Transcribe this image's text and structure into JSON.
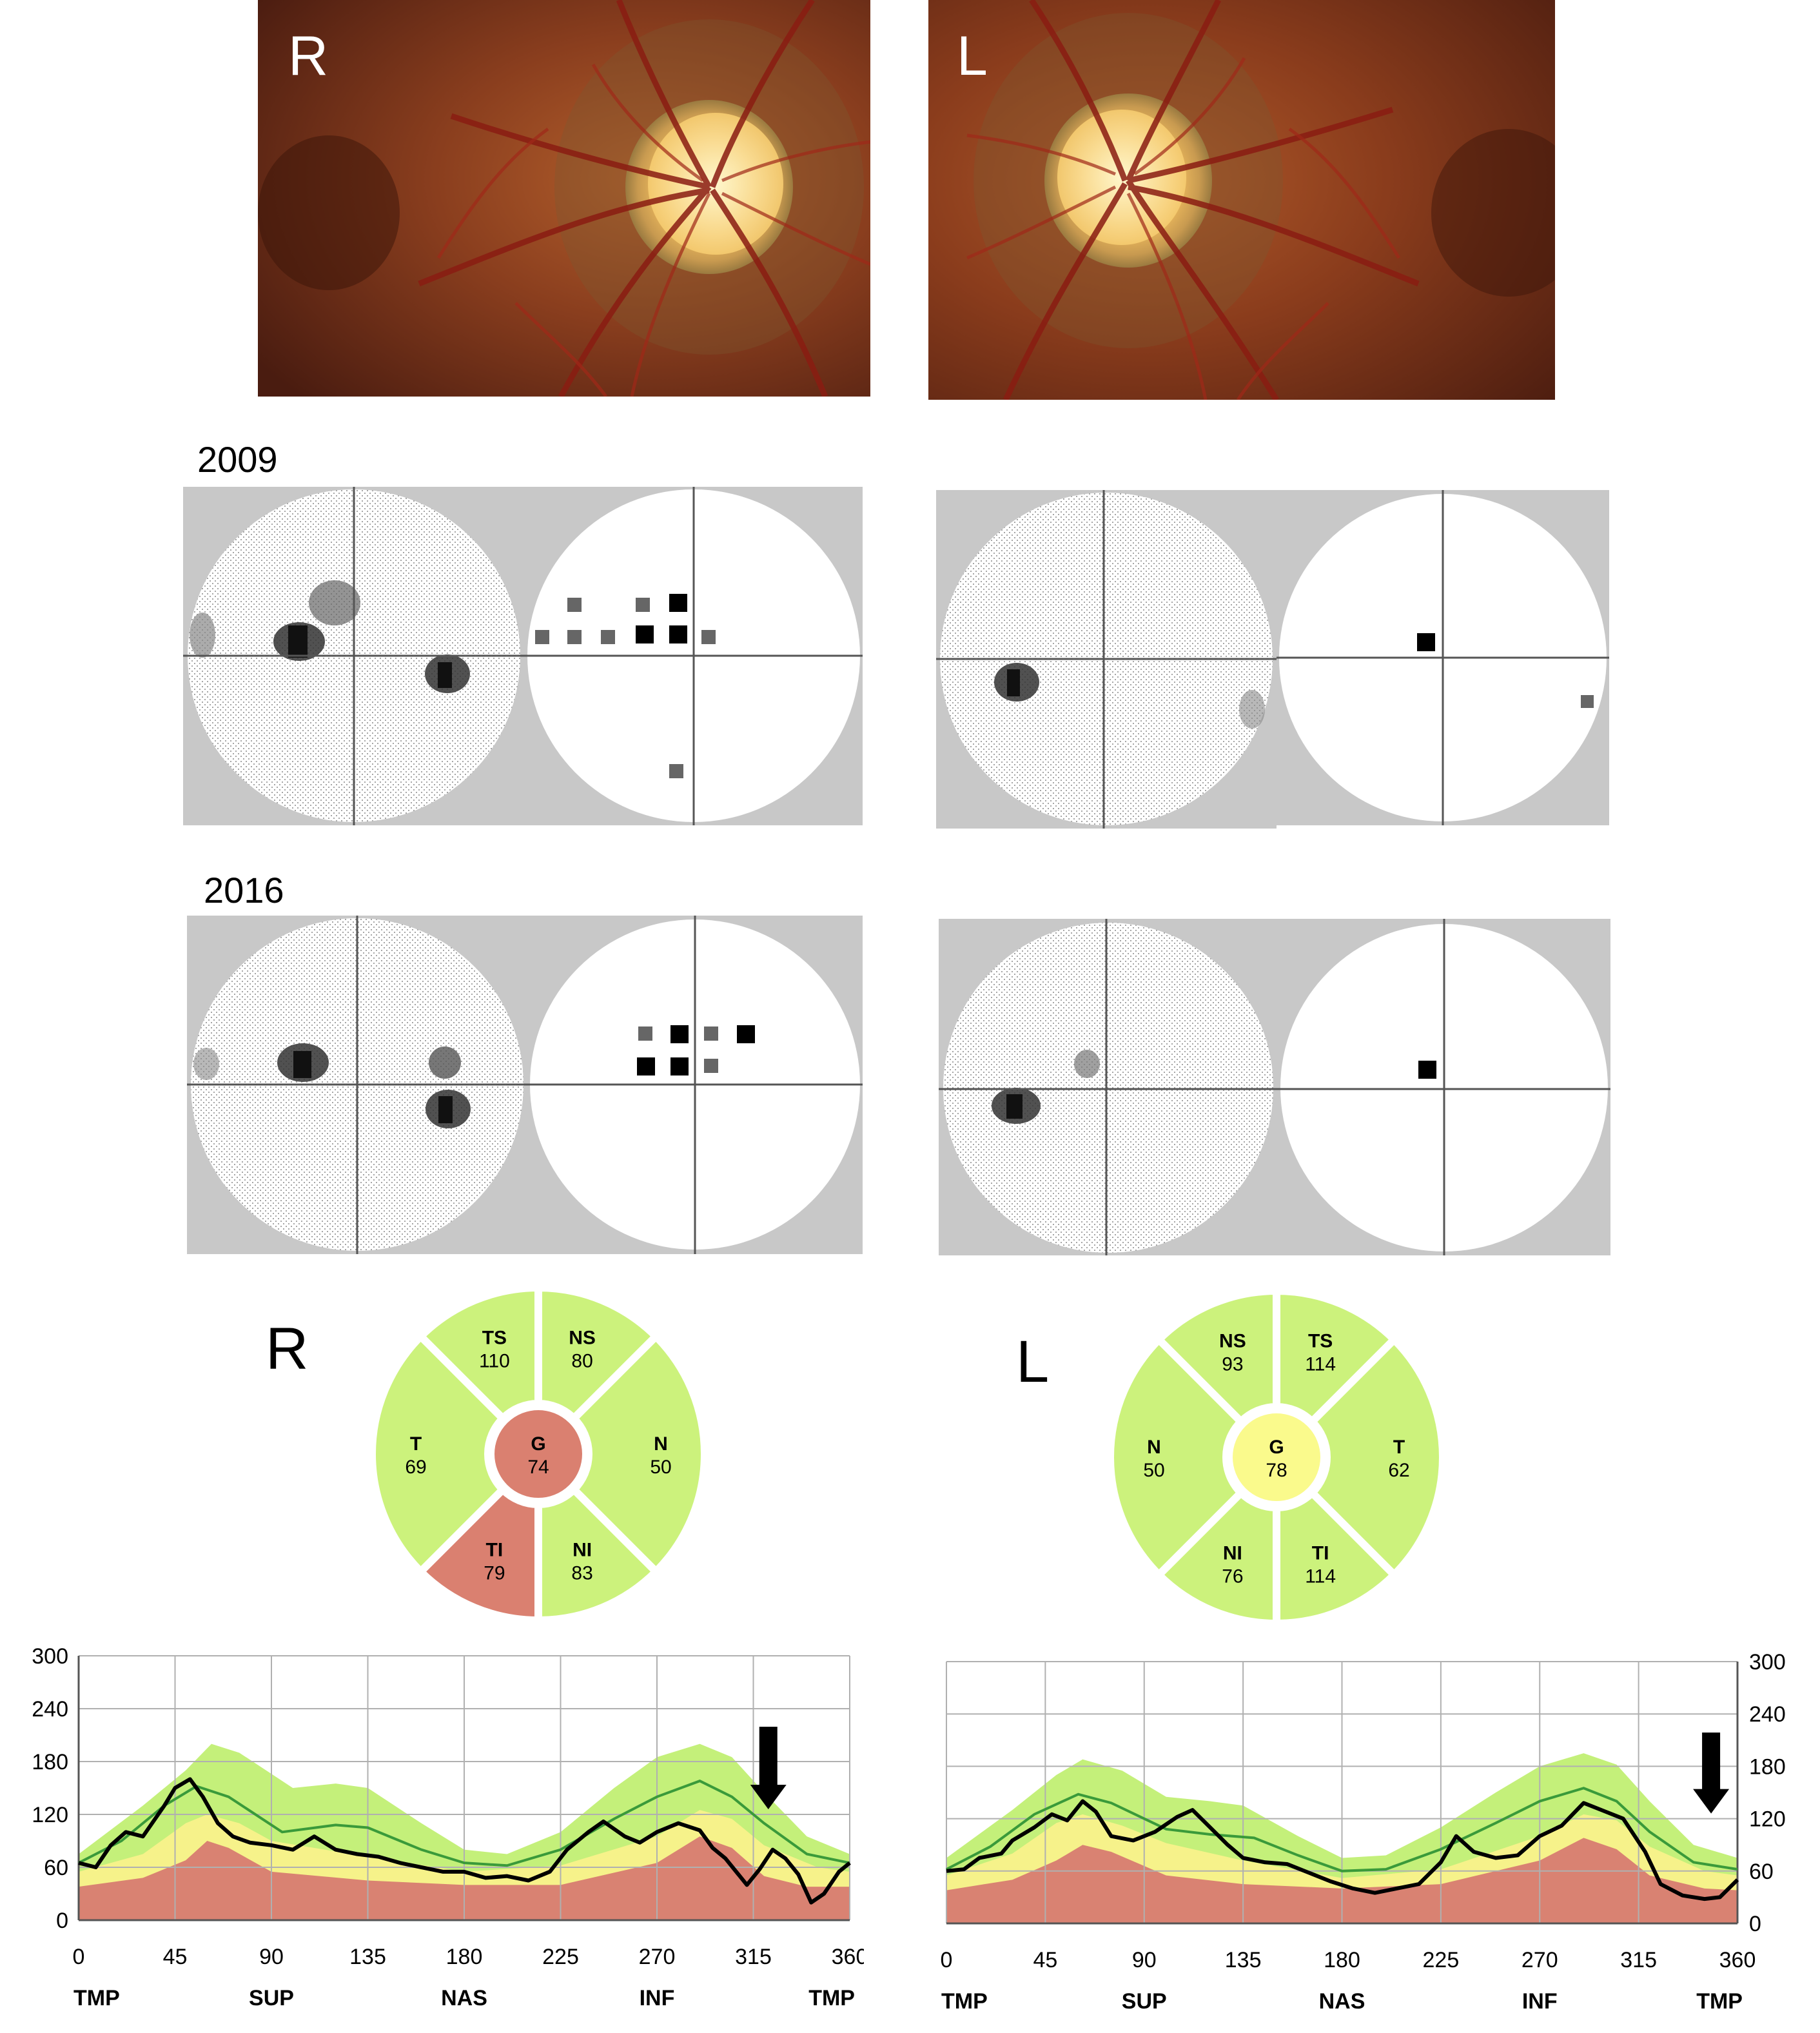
{
  "fundus": {
    "right_label": "R",
    "left_label": "L"
  },
  "visual_fields": {
    "year_1": "2009",
    "year_2": "2016"
  },
  "oct_sectors": {
    "right": {
      "eye_label": "R",
      "sectors": [
        {
          "code": "TS",
          "value": "110",
          "status": "normal"
        },
        {
          "code": "NS",
          "value": "80",
          "status": "normal"
        },
        {
          "code": "T",
          "value": "69",
          "status": "normal"
        },
        {
          "code": "N",
          "value": "50",
          "status": "normal"
        },
        {
          "code": "TI",
          "value": "79",
          "status": "abnormal"
        },
        {
          "code": "NI",
          "value": "83",
          "status": "normal"
        },
        {
          "code": "G",
          "value": "74",
          "status": "abnormal"
        }
      ]
    },
    "left": {
      "eye_label": "L",
      "sectors": [
        {
          "code": "NS",
          "value": "93",
          "status": "normal"
        },
        {
          "code": "TS",
          "value": "114",
          "status": "normal"
        },
        {
          "code": "N",
          "value": "50",
          "status": "normal"
        },
        {
          "code": "T",
          "value": "62",
          "status": "normal"
        },
        {
          "code": "NI",
          "value": "76",
          "status": "normal"
        },
        {
          "code": "TI",
          "value": "114",
          "status": "normal"
        },
        {
          "code": "G",
          "value": "78",
          "status": "borderline"
        }
      ]
    },
    "colors": {
      "normal": "#ccf27c",
      "borderline": "#fafa8c",
      "abnormal": "#da8070",
      "border": "#ffffff"
    }
  },
  "chart_data": [
    {
      "type": "line",
      "eye": "R",
      "title": "",
      "xlabel": "",
      "ylabel": "",
      "xlim": [
        0,
        360
      ],
      "ylim": [
        0,
        300
      ],
      "x_ticks": [
        "0",
        "45",
        "90",
        "135",
        "180",
        "225",
        "270",
        "315",
        "360"
      ],
      "y_ticks": [
        "0",
        "60",
        "120",
        "180",
        "240",
        "300"
      ],
      "region_labels": [
        "TMP",
        "SUP",
        "NAS",
        "INF",
        "TMP"
      ],
      "y_axis_side": "left",
      "grid": true,
      "arrow_at_x": 322,
      "normative_bands": {
        "red_upper": [
          [
            0,
            38
          ],
          [
            30,
            48
          ],
          [
            50,
            68
          ],
          [
            60,
            90
          ],
          [
            70,
            82
          ],
          [
            90,
            55
          ],
          [
            135,
            45
          ],
          [
            180,
            40
          ],
          [
            225,
            40
          ],
          [
            270,
            65
          ],
          [
            290,
            95
          ],
          [
            305,
            82
          ],
          [
            320,
            50
          ],
          [
            340,
            38
          ],
          [
            360,
            38
          ]
        ],
        "yellow_upper": [
          [
            0,
            55
          ],
          [
            30,
            75
          ],
          [
            50,
            110
          ],
          [
            60,
            120
          ],
          [
            75,
            110
          ],
          [
            90,
            90
          ],
          [
            135,
            72
          ],
          [
            180,
            55
          ],
          [
            225,
            62
          ],
          [
            270,
            95
          ],
          [
            290,
            125
          ],
          [
            305,
            115
          ],
          [
            320,
            85
          ],
          [
            345,
            60
          ],
          [
            360,
            55
          ]
        ],
        "green_upper": [
          [
            0,
            75
          ],
          [
            30,
            130
          ],
          [
            50,
            170
          ],
          [
            62,
            200
          ],
          [
            75,
            190
          ],
          [
            100,
            150
          ],
          [
            120,
            155
          ],
          [
            135,
            150
          ],
          [
            160,
            110
          ],
          [
            180,
            80
          ],
          [
            200,
            75
          ],
          [
            225,
            100
          ],
          [
            250,
            150
          ],
          [
            270,
            185
          ],
          [
            290,
            200
          ],
          [
            305,
            185
          ],
          [
            320,
            145
          ],
          [
            340,
            95
          ],
          [
            360,
            75
          ]
        ]
      },
      "mean_line": [
        [
          0,
          65
        ],
        [
          20,
          90
        ],
        [
          40,
          130
        ],
        [
          55,
          152
        ],
        [
          70,
          140
        ],
        [
          95,
          100
        ],
        [
          120,
          108
        ],
        [
          135,
          105
        ],
        [
          160,
          80
        ],
        [
          180,
          65
        ],
        [
          200,
          62
        ],
        [
          225,
          80
        ],
        [
          250,
          115
        ],
        [
          270,
          140
        ],
        [
          290,
          158
        ],
        [
          305,
          140
        ],
        [
          320,
          110
        ],
        [
          340,
          75
        ],
        [
          360,
          65
        ]
      ],
      "measurement": [
        [
          0,
          65
        ],
        [
          8,
          60
        ],
        [
          15,
          85
        ],
        [
          22,
          100
        ],
        [
          30,
          95
        ],
        [
          40,
          130
        ],
        [
          45,
          150
        ],
        [
          52,
          160
        ],
        [
          58,
          140
        ],
        [
          65,
          110
        ],
        [
          72,
          95
        ],
        [
          80,
          88
        ],
        [
          90,
          85
        ],
        [
          100,
          80
        ],
        [
          110,
          95
        ],
        [
          120,
          80
        ],
        [
          130,
          75
        ],
        [
          140,
          72
        ],
        [
          150,
          65
        ],
        [
          160,
          60
        ],
        [
          170,
          55
        ],
        [
          180,
          55
        ],
        [
          190,
          48
        ],
        [
          200,
          50
        ],
        [
          210,
          45
        ],
        [
          220,
          55
        ],
        [
          228,
          80
        ],
        [
          238,
          100
        ],
        [
          245,
          112
        ],
        [
          255,
          95
        ],
        [
          262,
          88
        ],
        [
          270,
          100
        ],
        [
          280,
          110
        ],
        [
          290,
          102
        ],
        [
          296,
          82
        ],
        [
          302,
          70
        ],
        [
          308,
          52
        ],
        [
          312,
          40
        ],
        [
          318,
          58
        ],
        [
          324,
          80
        ],
        [
          330,
          70
        ],
        [
          336,
          52
        ],
        [
          342,
          20
        ],
        [
          348,
          30
        ],
        [
          355,
          55
        ],
        [
          360,
          65
        ]
      ]
    },
    {
      "type": "line",
      "eye": "L",
      "title": "",
      "xlabel": "",
      "ylabel": "",
      "xlim": [
        0,
        360
      ],
      "ylim": [
        0,
        300
      ],
      "x_ticks": [
        "0",
        "45",
        "90",
        "135",
        "180",
        "225",
        "270",
        "315",
        "360"
      ],
      "y_ticks": [
        "0",
        "60",
        "120",
        "180",
        "240",
        "300"
      ],
      "region_labels": [
        "TMP",
        "SUP",
        "NAS",
        "INF",
        "TMP"
      ],
      "y_axis_side": "right",
      "grid": true,
      "arrow_at_x": 348,
      "normative_bands": {
        "red_upper": [
          [
            0,
            38
          ],
          [
            30,
            50
          ],
          [
            50,
            72
          ],
          [
            62,
            90
          ],
          [
            75,
            82
          ],
          [
            100,
            55
          ],
          [
            135,
            45
          ],
          [
            180,
            40
          ],
          [
            225,
            45
          ],
          [
            270,
            72
          ],
          [
            290,
            98
          ],
          [
            305,
            85
          ],
          [
            320,
            55
          ],
          [
            345,
            40
          ],
          [
            360,
            38
          ]
        ],
        "yellow_upper": [
          [
            0,
            55
          ],
          [
            30,
            80
          ],
          [
            50,
            115
          ],
          [
            62,
            125
          ],
          [
            80,
            112
          ],
          [
            100,
            92
          ],
          [
            135,
            72
          ],
          [
            180,
            52
          ],
          [
            225,
            62
          ],
          [
            270,
            100
          ],
          [
            290,
            125
          ],
          [
            305,
            118
          ],
          [
            320,
            88
          ],
          [
            345,
            60
          ],
          [
            360,
            55
          ]
        ],
        "green_upper": [
          [
            0,
            75
          ],
          [
            30,
            130
          ],
          [
            50,
            170
          ],
          [
            62,
            188
          ],
          [
            80,
            175
          ],
          [
            100,
            145
          ],
          [
            120,
            140
          ],
          [
            135,
            135
          ],
          [
            160,
            100
          ],
          [
            180,
            75
          ],
          [
            200,
            78
          ],
          [
            225,
            110
          ],
          [
            250,
            150
          ],
          [
            270,
            180
          ],
          [
            290,
            195
          ],
          [
            305,
            182
          ],
          [
            320,
            140
          ],
          [
            340,
            90
          ],
          [
            360,
            75
          ]
        ]
      },
      "mean_line": [
        [
          0,
          62
        ],
        [
          20,
          88
        ],
        [
          40,
          125
        ],
        [
          60,
          148
        ],
        [
          75,
          138
        ],
        [
          100,
          108
        ],
        [
          120,
          102
        ],
        [
          140,
          98
        ],
        [
          160,
          78
        ],
        [
          180,
          60
        ],
        [
          200,
          62
        ],
        [
          225,
          85
        ],
        [
          250,
          115
        ],
        [
          270,
          140
        ],
        [
          290,
          155
        ],
        [
          305,
          140
        ],
        [
          320,
          105
        ],
        [
          340,
          70
        ],
        [
          360,
          62
        ]
      ],
      "measurement": [
        [
          0,
          60
        ],
        [
          8,
          62
        ],
        [
          15,
          75
        ],
        [
          25,
          80
        ],
        [
          30,
          95
        ],
        [
          40,
          110
        ],
        [
          48,
          125
        ],
        [
          55,
          118
        ],
        [
          62,
          140
        ],
        [
          68,
          128
        ],
        [
          75,
          100
        ],
        [
          85,
          95
        ],
        [
          95,
          105
        ],
        [
          105,
          122
        ],
        [
          112,
          130
        ],
        [
          120,
          110
        ],
        [
          128,
          90
        ],
        [
          135,
          75
        ],
        [
          145,
          70
        ],
        [
          155,
          68
        ],
        [
          165,
          58
        ],
        [
          175,
          48
        ],
        [
          185,
          40
        ],
        [
          195,
          35
        ],
        [
          205,
          40
        ],
        [
          215,
          45
        ],
        [
          225,
          70
        ],
        [
          232,
          100
        ],
        [
          240,
          82
        ],
        [
          250,
          75
        ],
        [
          260,
          78
        ],
        [
          270,
          100
        ],
        [
          280,
          112
        ],
        [
          290,
          138
        ],
        [
          300,
          128
        ],
        [
          308,
          120
        ],
        [
          318,
          82
        ],
        [
          325,
          45
        ],
        [
          335,
          32
        ],
        [
          345,
          28
        ],
        [
          352,
          30
        ],
        [
          358,
          45
        ],
        [
          360,
          50
        ]
      ]
    }
  ]
}
